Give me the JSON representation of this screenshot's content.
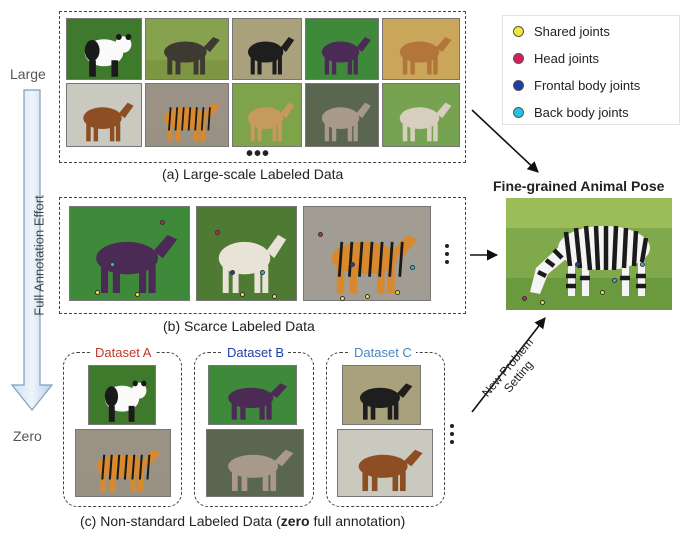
{
  "side_labels": {
    "top": "Large",
    "bottom": "Zero"
  },
  "effort_axis_label": "Full Annotation Effort",
  "legend": [
    {
      "label": "Shared joints",
      "color": "#f2e838"
    },
    {
      "label": "Head joints",
      "color": "#d81d5b"
    },
    {
      "label": "Frontal body joints",
      "color": "#1f3ea8"
    },
    {
      "label": "Back body joints",
      "color": "#22c4e6"
    }
  ],
  "panels": {
    "a": {
      "caption": "(a) Large-scale Labeled Data",
      "ellipsis": "•••"
    },
    "b": {
      "caption": "(b) Scarce Labeled Data"
    },
    "c": {
      "caption_prefix": "(c) Non-standard Labeled Data (",
      "caption_bold": "zero",
      "caption_suffix": " full annotation)"
    }
  },
  "datasets": [
    {
      "title": "Dataset A",
      "color": "#c0392b"
    },
    {
      "title": "Dataset B",
      "color": "#1f3ea8"
    },
    {
      "title": "Dataset C",
      "color": "#4a86c5"
    }
  ],
  "target": {
    "title": "Fine-grained Animal Pose"
  },
  "setting_label": "New Problem Setting"
}
